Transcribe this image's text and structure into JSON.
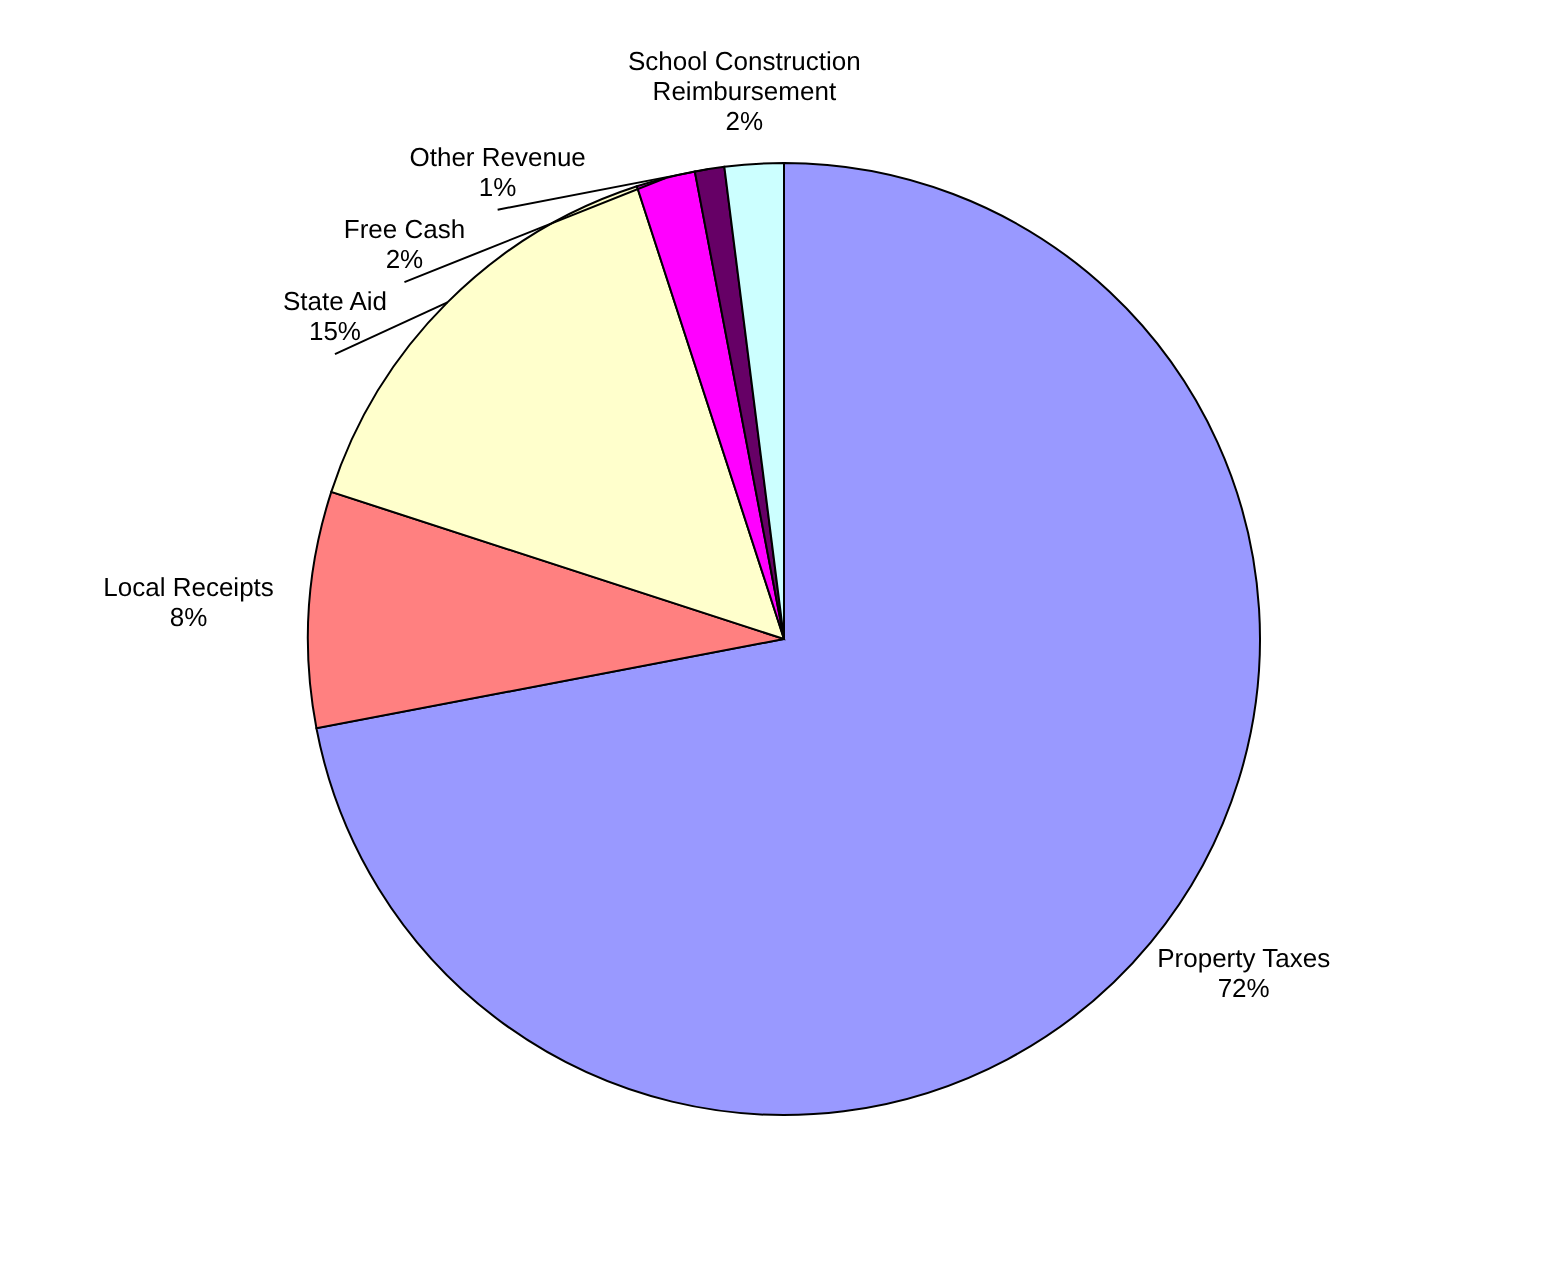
{
  "chart_data": {
    "type": "pie",
    "categories": [
      "Property Taxes",
      "Local Receipts",
      "State Aid",
      "Free Cash",
      "Other Revenue",
      "School Construction Reimbursement"
    ],
    "values": [
      72,
      8,
      15,
      2,
      1,
      2
    ],
    "value_labels": [
      "72%",
      "8%",
      "15%",
      "2%",
      "1%",
      "2%"
    ],
    "colors": [
      "#9999ff",
      "#ff8080",
      "#ffffcc",
      "#ff00ff",
      "#660066",
      "#ccffff"
    ]
  }
}
